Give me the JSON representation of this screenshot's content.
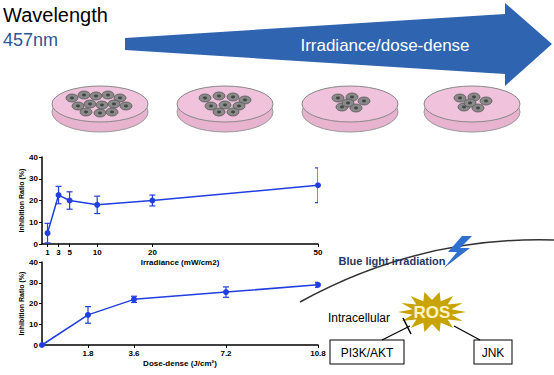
{
  "header": {
    "title": "Wavelength",
    "subtitle": "457nm",
    "arrow_label": "Irradiance/dose-dense"
  },
  "chart_data": [
    {
      "type": "line",
      "x_label": "Irradiance (mW/cm2)",
      "y_label": "Inhibition Ratio (%)",
      "x": [
        1,
        3,
        5,
        10,
        20,
        50
      ],
      "values": [
        5,
        22.5,
        20,
        18,
        20,
        27
      ],
      "errors": [
        4.5,
        4,
        4,
        4,
        2.5,
        8
      ],
      "color": "#1f3fe0",
      "marker": "circle",
      "xlim": [
        0,
        50
      ],
      "xticks": [
        1,
        3,
        5,
        10,
        20,
        50
      ],
      "ylim": [
        0,
        40
      ],
      "yticks": [
        0,
        10,
        20,
        30,
        40
      ],
      "grid": false
    },
    {
      "type": "line",
      "x_label": "Dose-dense (J/cm²)",
      "y_label": "Inhibition Ratio (%)",
      "x": [
        0,
        1.8,
        3.6,
        7.2,
        10.8
      ],
      "values": [
        0,
        14.5,
        22,
        25.5,
        29
      ],
      "errors": [
        0,
        4,
        1.5,
        2.5,
        1.2
      ],
      "color": "#1f3fe0",
      "marker": "circle",
      "xlim": [
        0,
        10.8
      ],
      "xticks": [
        1.8,
        3.6,
        7.2,
        10.8
      ],
      "ylim": [
        0,
        40
      ],
      "yticks": [
        0,
        10,
        20,
        30,
        40
      ],
      "grid": false
    }
  ],
  "diagram": {
    "stimulus": "Blue light irradiation",
    "compartment": "Intracellular",
    "center": "ROS",
    "targets": [
      "PI3K/AKT",
      "JNK"
    ]
  }
}
